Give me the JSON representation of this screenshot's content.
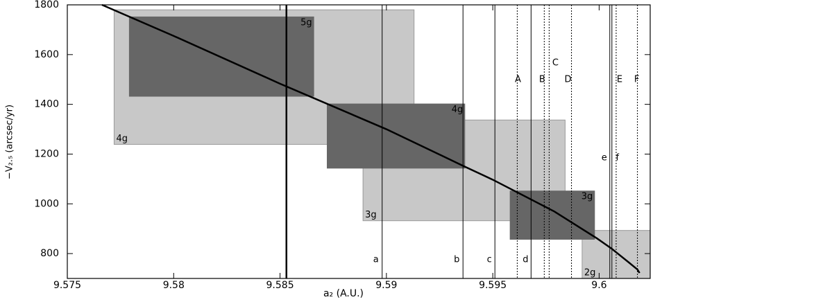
{
  "chart_data": {
    "type": "line",
    "xlabel": "a₂ (A.U.)",
    "ylabel": "−V₂.₅ (arcsec/yr)",
    "xlim": [
      9.575,
      9.6024
    ],
    "ylim": [
      700,
      1800
    ],
    "xticks": [
      9.575,
      9.58,
      9.585,
      9.59,
      9.595,
      9.6
    ],
    "yticks": [
      800,
      1000,
      1200,
      1400,
      1600,
      1800
    ],
    "color": "#000000",
    "x": [
      9.57663,
      9.58,
      9.585,
      9.59,
      9.5936,
      9.595,
      9.5979,
      9.5999,
      9.6006,
      9.6014,
      9.6018,
      9.6019
    ],
    "values": [
      1800,
      1675,
      1483,
      1300,
      1153,
      1097,
      969,
      861,
      819,
      764,
      736,
      722
    ],
    "boxes": [
      {
        "label": "4g",
        "x": [
          9.5772,
          9.5913
        ],
        "y": [
          1239,
          1780
        ],
        "color": "#c8c8c8"
      },
      {
        "label": "3g",
        "x": [
          9.5889,
          9.5984
        ],
        "y": [
          932,
          1337
        ],
        "color": "#c8c8c8"
      },
      {
        "label": "2g",
        "x": [
          9.5992,
          9.6024
        ],
        "y": [
          700,
          893
        ],
        "color": "#c8c8c8"
      },
      {
        "label": "5g",
        "x": [
          9.5779,
          9.5866
        ],
        "y": [
          1431,
          1753
        ],
        "color": "#666666"
      },
      {
        "label": "4g",
        "x": [
          9.5872,
          9.5937
        ],
        "y": [
          1142,
          1403
        ],
        "color": "#666666"
      },
      {
        "label": "3g",
        "x": [
          9.5958,
          9.5998
        ],
        "y": [
          856,
          1053
        ],
        "color": "#666666"
      }
    ],
    "vlines": [
      {
        "x": 9.5853,
        "style": "solid",
        "width": 2.5
      },
      {
        "label": "a",
        "x": 9.5898,
        "style": "solid",
        "width": 1
      },
      {
        "label": "b",
        "x": 9.5936,
        "style": "solid",
        "width": 1
      },
      {
        "label": "c",
        "x": 9.5951,
        "style": "solid",
        "width": 1
      },
      {
        "label": "d",
        "x": 9.5968,
        "style": "solid",
        "width": 1
      },
      {
        "label": "e",
        "x": 9.6005,
        "style": "solid",
        "width": 1
      },
      {
        "label": "f",
        "x": 9.6006,
        "style": "solid",
        "width": 1
      },
      {
        "label": "A",
        "x": 9.59615,
        "style": "dotted",
        "width": 1
      },
      {
        "label": "B",
        "x": 9.59742,
        "style": "dotted",
        "width": 1
      },
      {
        "label": "C",
        "x": 9.59765,
        "style": "dotted",
        "width": 1
      },
      {
        "label": "D",
        "x": 9.5987,
        "style": "dotted",
        "width": 1
      },
      {
        "label": "E",
        "x": 9.6008,
        "style": "dotted",
        "width": 1
      },
      {
        "label": "F",
        "x": 9.6018,
        "style": "dotted",
        "width": 1
      }
    ]
  }
}
